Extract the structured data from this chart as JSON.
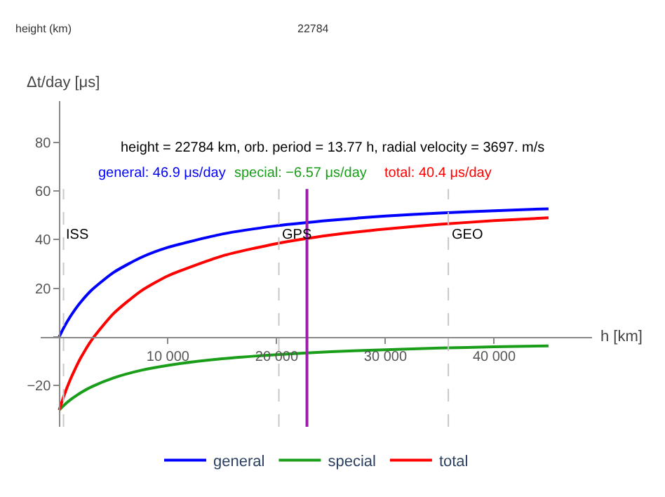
{
  "chart_data": {
    "type": "line",
    "ylabel": "Δt/day [μs]",
    "xlabel": "h [km]",
    "x": [
      0,
      500,
      1000,
      1500,
      2000,
      3000,
      5000,
      7500,
      10000,
      15000,
      20000,
      25000,
      30000,
      35000,
      40000,
      45000
    ],
    "series": [
      {
        "name": "general",
        "color": "#0000ff",
        "values": [
          0,
          4.4,
          8.2,
          11.5,
          14.4,
          19.3,
          26.5,
          32.6,
          36.8,
          42.3,
          45.7,
          48.0,
          49.7,
          50.9,
          51.9,
          52.7
        ]
      },
      {
        "name": "special",
        "color": "#1a9e1a",
        "values": [
          -30.1,
          -27.9,
          -26.0,
          -24.4,
          -22.9,
          -20.5,
          -16.9,
          -13.8,
          -11.7,
          -9.0,
          -7.3,
          -6.1,
          -5.3,
          -4.6,
          -4.1,
          -3.7
        ]
      },
      {
        "name": "total",
        "color": "#ff0000",
        "values": [
          -30.1,
          -23.5,
          -17.8,
          -12.9,
          -8.5,
          -1.2,
          9.6,
          18.8,
          25.1,
          33.3,
          38.4,
          41.9,
          44.4,
          46.3,
          47.8,
          49.0
        ]
      }
    ],
    "xlim": [
      -1700,
      49000
    ],
    "ylim": [
      -37,
      97
    ],
    "xticks": [
      {
        "value": 10000,
        "label": "10 000"
      },
      {
        "value": 20000,
        "label": "20 000"
      },
      {
        "value": 30000,
        "label": "30 000"
      },
      {
        "value": 40000,
        "label": "40 000"
      }
    ],
    "yticks": [
      -20,
      {
        "value": 0,
        "label": null
      },
      20,
      40,
      60,
      80
    ],
    "ref_lines": [
      {
        "axis": "x",
        "value": 400,
        "label": "ISS",
        "color": "#c8c8c8",
        "line_style": "dashed"
      },
      {
        "axis": "x",
        "value": 20200,
        "label": "GPS",
        "color": "#c8c8c8",
        "line_style": "dashed"
      },
      {
        "axis": "x",
        "value": 35786,
        "label": "GEO",
        "color": "#c8c8c8",
        "line_style": "dashed"
      },
      {
        "axis": "x",
        "value": 22784,
        "color": "#9b1fa8",
        "line_style": "solid"
      }
    ],
    "annotations": [
      "height = 22784 km, orb. period = 13.77 h, radial velocity = 3697. m/s",
      "general: 46.9 μs/day",
      "special: −6.57 μs/day",
      "total: 40.4 μs/day",
      "height (km)",
      "22784"
    ],
    "legend": "bottom",
    "grid": false,
    "marker": "none",
    "line_style": "solid"
  }
}
